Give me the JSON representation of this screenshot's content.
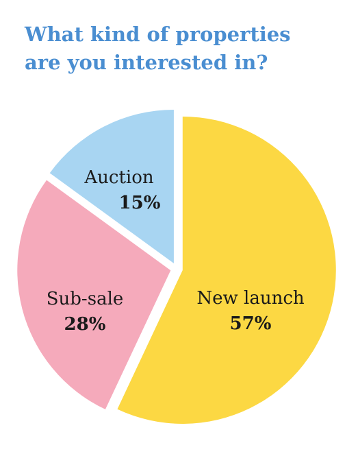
{
  "chart_data": {
    "type": "pie",
    "title": "What kind of properties are you interested in?",
    "categories": [
      "New launch",
      "Sub-sale",
      "Auction"
    ],
    "values": [
      57,
      28,
      15
    ],
    "value_labels": [
      "57%",
      "28%",
      "15%"
    ],
    "colors": [
      "#fcd843",
      "#f5aabb",
      "#a8d5f2"
    ]
  }
}
